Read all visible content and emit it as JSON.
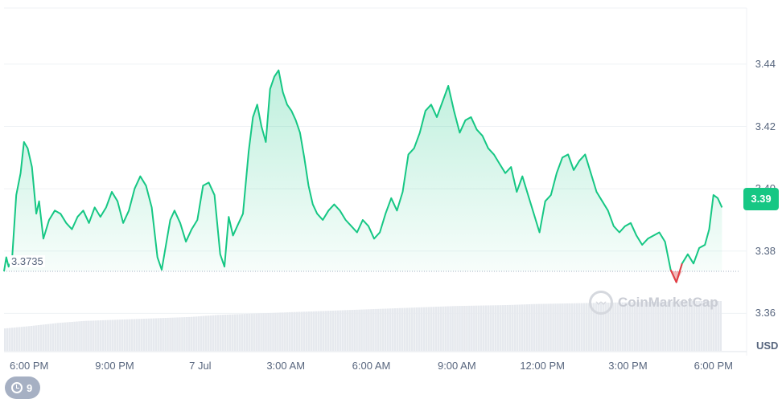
{
  "chart_data": {
    "type": "area",
    "currency_label": "USD",
    "current_price_label": "3.39",
    "open_price_label": "3.3735",
    "open_price": 3.3735,
    "ylim": [
      3.348,
      3.458
    ],
    "y_ticks": [
      "3.44",
      "3.42",
      "3.40",
      "3.38",
      "3.36"
    ],
    "y_tick_values": [
      3.44,
      3.42,
      3.4,
      3.38,
      3.36
    ],
    "x_ticks": [
      "6:00 PM",
      "9:00 PM",
      "7 Jul",
      "3:00 AM",
      "6:00 AM",
      "9:00 AM",
      "12:00 PM",
      "3:00 PM",
      "6:00 PM"
    ],
    "x_tick_hours": [
      0,
      3,
      6,
      9,
      12,
      15,
      18,
      21,
      24
    ],
    "xlim_hours": [
      -0.88,
      24.88
    ],
    "series": [
      {
        "values": [
          [
            -0.88,
            3.3735
          ],
          [
            -0.8,
            3.378
          ],
          [
            -0.72,
            3.375
          ],
          [
            -0.6,
            3.377
          ],
          [
            -0.45,
            3.398
          ],
          [
            -0.3,
            3.405
          ],
          [
            -0.18,
            3.415
          ],
          [
            -0.05,
            3.413
          ],
          [
            0.1,
            3.407
          ],
          [
            0.25,
            3.392
          ],
          [
            0.35,
            3.396
          ],
          [
            0.5,
            3.384
          ],
          [
            0.7,
            3.39
          ],
          [
            0.9,
            3.393
          ],
          [
            1.1,
            3.392
          ],
          [
            1.3,
            3.389
          ],
          [
            1.5,
            3.387
          ],
          [
            1.7,
            3.391
          ],
          [
            1.9,
            3.393
          ],
          [
            2.1,
            3.389
          ],
          [
            2.3,
            3.394
          ],
          [
            2.5,
            3.391
          ],
          [
            2.7,
            3.394
          ],
          [
            2.9,
            3.399
          ],
          [
            3.1,
            3.396
          ],
          [
            3.3,
            3.389
          ],
          [
            3.5,
            3.393
          ],
          [
            3.7,
            3.4
          ],
          [
            3.9,
            3.404
          ],
          [
            4.1,
            3.401
          ],
          [
            4.3,
            3.394
          ],
          [
            4.5,
            3.378
          ],
          [
            4.65,
            3.374
          ],
          [
            4.8,
            3.382
          ],
          [
            4.95,
            3.39
          ],
          [
            5.1,
            3.393
          ],
          [
            5.3,
            3.389
          ],
          [
            5.5,
            3.383
          ],
          [
            5.7,
            3.387
          ],
          [
            5.9,
            3.39
          ],
          [
            6.1,
            3.401
          ],
          [
            6.3,
            3.402
          ],
          [
            6.5,
            3.398
          ],
          [
            6.7,
            3.379
          ],
          [
            6.85,
            3.375
          ],
          [
            7.0,
            3.391
          ],
          [
            7.15,
            3.385
          ],
          [
            7.3,
            3.388
          ],
          [
            7.5,
            3.392
          ],
          [
            7.7,
            3.412
          ],
          [
            7.85,
            3.423
          ],
          [
            8.0,
            3.427
          ],
          [
            8.15,
            3.42
          ],
          [
            8.3,
            3.415
          ],
          [
            8.45,
            3.432
          ],
          [
            8.6,
            3.436
          ],
          [
            8.75,
            3.438
          ],
          [
            8.9,
            3.431
          ],
          [
            9.05,
            3.427
          ],
          [
            9.2,
            3.425
          ],
          [
            9.35,
            3.422
          ],
          [
            9.5,
            3.418
          ],
          [
            9.65,
            3.41
          ],
          [
            9.8,
            3.401
          ],
          [
            9.95,
            3.395
          ],
          [
            10.1,
            3.392
          ],
          [
            10.3,
            3.39
          ],
          [
            10.5,
            3.393
          ],
          [
            10.7,
            3.395
          ],
          [
            10.9,
            3.393
          ],
          [
            11.1,
            3.39
          ],
          [
            11.3,
            3.388
          ],
          [
            11.5,
            3.386
          ],
          [
            11.7,
            3.39
          ],
          [
            11.9,
            3.388
          ],
          [
            12.1,
            3.384
          ],
          [
            12.3,
            3.386
          ],
          [
            12.5,
            3.392
          ],
          [
            12.7,
            3.397
          ],
          [
            12.9,
            3.393
          ],
          [
            13.1,
            3.399
          ],
          [
            13.3,
            3.411
          ],
          [
            13.5,
            3.413
          ],
          [
            13.7,
            3.418
          ],
          [
            13.9,
            3.425
          ],
          [
            14.1,
            3.427
          ],
          [
            14.3,
            3.423
          ],
          [
            14.5,
            3.428
          ],
          [
            14.7,
            3.433
          ],
          [
            14.9,
            3.425
          ],
          [
            15.1,
            3.418
          ],
          [
            15.3,
            3.422
          ],
          [
            15.5,
            3.423
          ],
          [
            15.7,
            3.419
          ],
          [
            15.9,
            3.417
          ],
          [
            16.1,
            3.413
          ],
          [
            16.3,
            3.411
          ],
          [
            16.5,
            3.408
          ],
          [
            16.7,
            3.405
          ],
          [
            16.9,
            3.407
          ],
          [
            17.1,
            3.399
          ],
          [
            17.3,
            3.404
          ],
          [
            17.5,
            3.398
          ],
          [
            17.7,
            3.392
          ],
          [
            17.9,
            3.386
          ],
          [
            18.1,
            3.396
          ],
          [
            18.3,
            3.398
          ],
          [
            18.5,
            3.405
          ],
          [
            18.7,
            3.41
          ],
          [
            18.9,
            3.411
          ],
          [
            19.1,
            3.406
          ],
          [
            19.3,
            3.409
          ],
          [
            19.5,
            3.411
          ],
          [
            19.7,
            3.405
          ],
          [
            19.9,
            3.399
          ],
          [
            20.1,
            3.396
          ],
          [
            20.3,
            3.393
          ],
          [
            20.5,
            3.388
          ],
          [
            20.7,
            3.386
          ],
          [
            20.9,
            3.388
          ],
          [
            21.1,
            3.389
          ],
          [
            21.3,
            3.385
          ],
          [
            21.5,
            3.382
          ],
          [
            21.7,
            3.384
          ],
          [
            21.9,
            3.385
          ],
          [
            22.1,
            3.386
          ],
          [
            22.3,
            3.383
          ],
          [
            22.5,
            3.374
          ],
          [
            22.7,
            3.37
          ],
          [
            22.9,
            3.376
          ],
          [
            23.1,
            3.379
          ],
          [
            23.3,
            3.376
          ],
          [
            23.5,
            3.381
          ],
          [
            23.7,
            3.382
          ],
          [
            23.85,
            3.387
          ],
          [
            24.0,
            3.398
          ],
          [
            24.15,
            3.397
          ],
          [
            24.3,
            3.394
          ]
        ]
      }
    ],
    "volume_bars": {
      "x_start_hours": -0.88,
      "x_end_hours": 24.3,
      "levels": [
        0.45,
        0.5,
        0.56,
        0.6,
        0.62,
        0.64,
        0.66,
        0.68,
        0.72,
        0.74,
        0.76,
        0.78,
        0.8,
        0.82,
        0.84,
        0.86,
        0.88,
        0.9,
        0.91,
        0.92,
        0.94,
        0.95,
        0.96,
        0.97,
        0.98,
        0.99,
        1.0,
        1.0
      ]
    },
    "grid": true,
    "colors": {
      "up": "#16c784",
      "down": "#ea3943",
      "area_fill_top": "#16c784",
      "grid": "#eff2f5",
      "axis_text": "#58667e",
      "volume": "#e6e9ee"
    }
  },
  "watermark": {
    "text": "CoinMarketCap",
    "icon": "coinmarketcap-logo-icon"
  },
  "history_badge": {
    "icon": "history-clock-icon",
    "count": "9"
  }
}
